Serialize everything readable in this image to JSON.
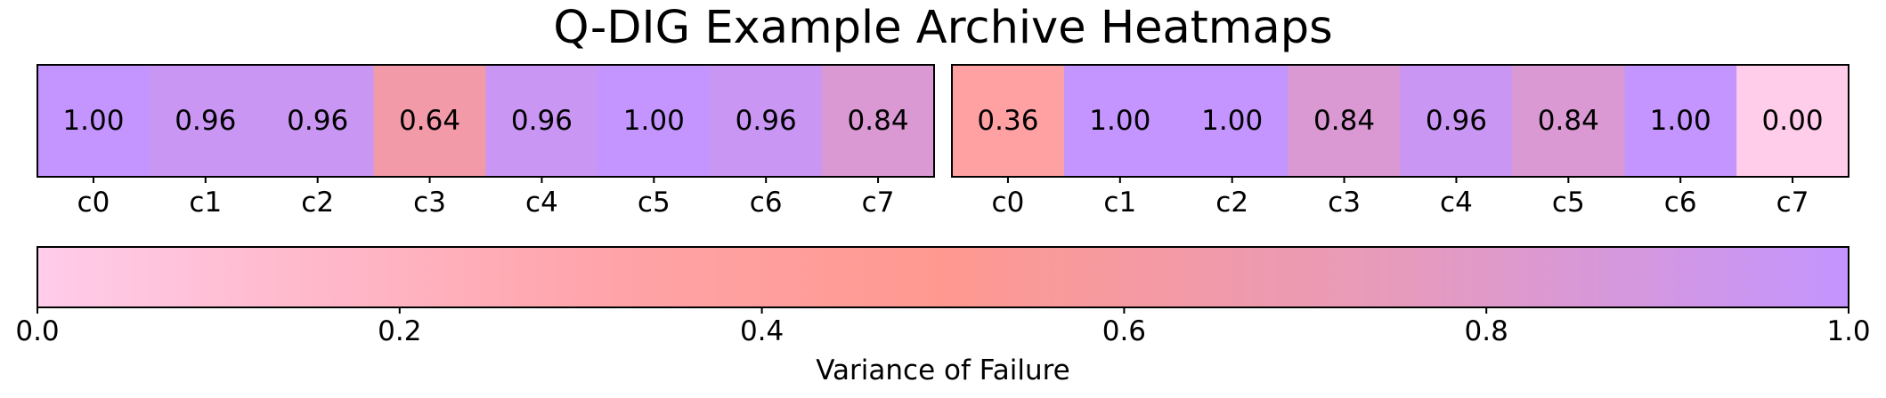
{
  "chart_data": {
    "type": "heatmap",
    "title": "Q-DIG Example Archive Heatmaps",
    "panels": [
      {
        "categories": [
          "c0",
          "c1",
          "c2",
          "c3",
          "c4",
          "c5",
          "c6",
          "c7"
        ],
        "values": [
          1.0,
          0.96,
          0.96,
          0.64,
          0.96,
          1.0,
          0.96,
          0.84
        ],
        "labels": [
          "1.00",
          "0.96",
          "0.96",
          "0.64",
          "0.96",
          "1.00",
          "0.96",
          "0.84"
        ]
      },
      {
        "categories": [
          "c0",
          "c1",
          "c2",
          "c3",
          "c4",
          "c5",
          "c6",
          "c7"
        ],
        "values": [
          0.36,
          1.0,
          1.0,
          0.84,
          0.96,
          0.84,
          1.0,
          0.0
        ],
        "labels": [
          "0.36",
          "1.00",
          "1.00",
          "0.84",
          "0.96",
          "0.84",
          "1.00",
          "0.00"
        ]
      }
    ],
    "colorbar": {
      "label": "Variance of Failure",
      "range": [
        0.0,
        1.0
      ],
      "ticks": [
        0.0,
        0.2,
        0.4,
        0.6,
        0.8,
        1.0
      ],
      "tick_labels": [
        "0.0",
        "0.2",
        "0.4",
        "0.6",
        "0.8",
        "1.0"
      ],
      "orientation": "horizontal",
      "colors": [
        "#ffccea",
        "#ffa3a8",
        "#ff9990",
        "#e79bbb",
        "#c495ff"
      ],
      "color_stops": [
        0.0,
        0.32,
        0.5,
        0.75,
        1.0
      ]
    }
  }
}
